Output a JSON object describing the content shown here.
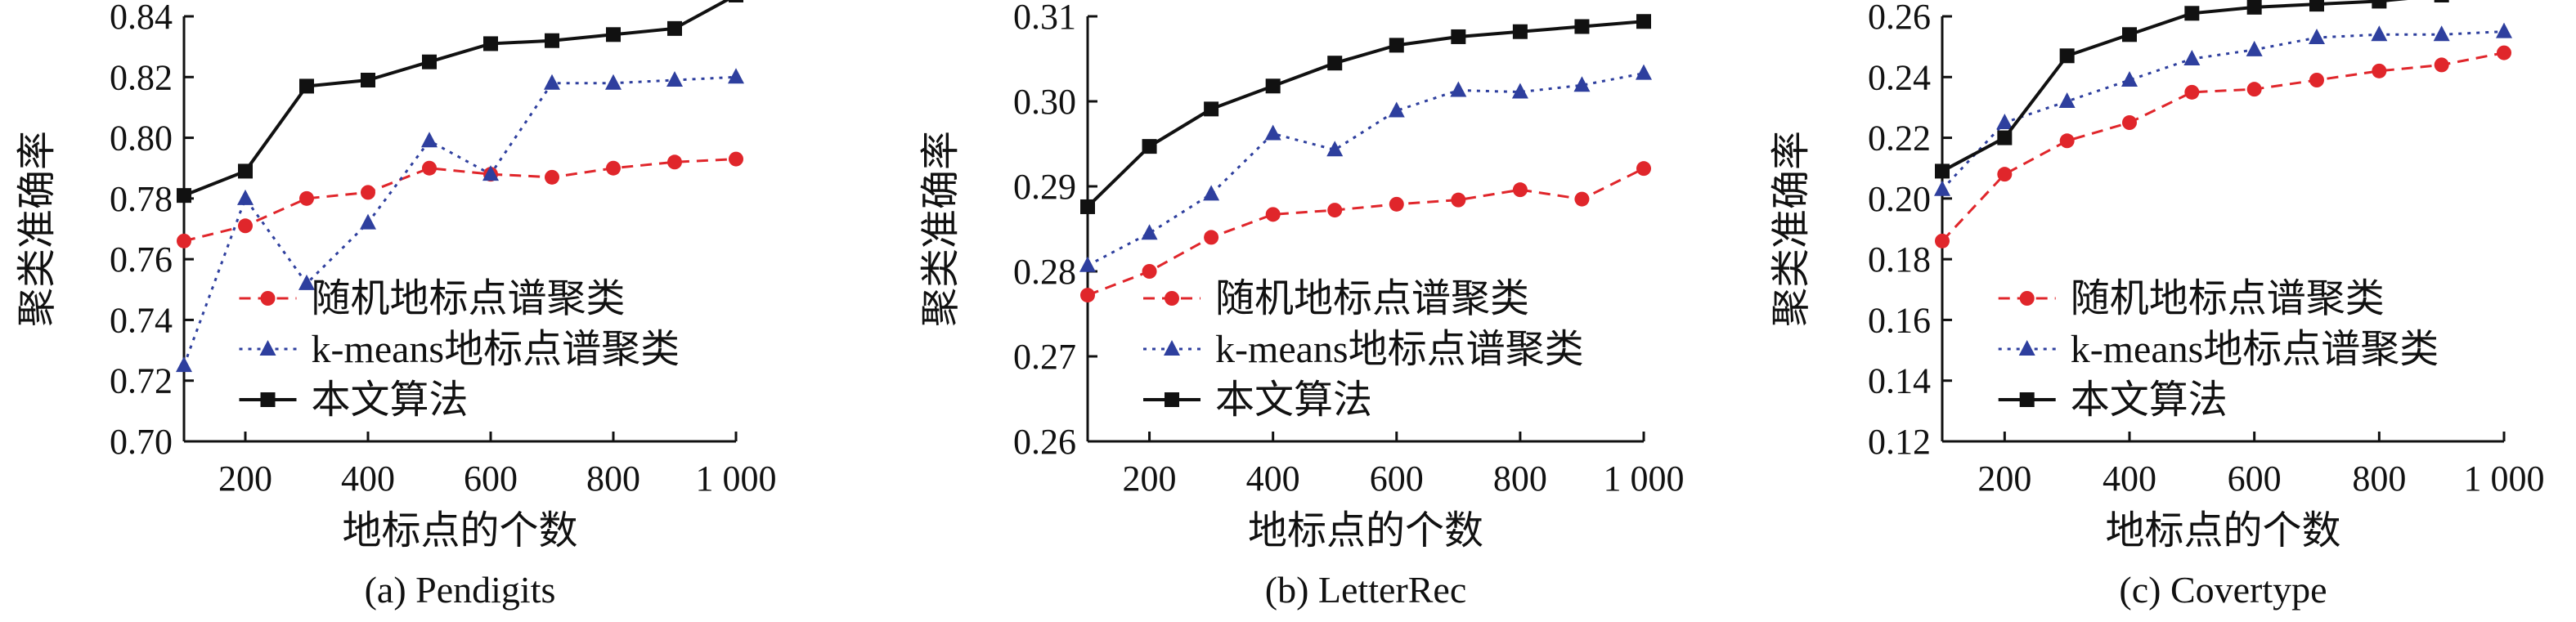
{
  "chart_data": [
    {
      "type": "line",
      "title": "",
      "caption": "(a) Pendigits",
      "xlabel": "地标点的个数",
      "ylabel": "聚类准确率",
      "x": [
        100,
        200,
        300,
        400,
        500,
        600,
        700,
        800,
        900,
        1000
      ],
      "xticks": [
        200,
        400,
        600,
        800,
        1000
      ],
      "xtick_labels": [
        "200",
        "400",
        "600",
        "800",
        "1 000"
      ],
      "xlim": [
        100,
        1000
      ],
      "ylim": [
        0.7,
        0.84
      ],
      "yticks": [
        0.7,
        0.72,
        0.74,
        0.76,
        0.78,
        0.8,
        0.82,
        0.84
      ],
      "ytick_labels": [
        "0.70",
        "0.72",
        "0.74",
        "0.76",
        "0.78",
        "0.80",
        "0.82",
        "0.84"
      ],
      "legend_position": "bottom-center",
      "grid": false,
      "series": [
        {
          "name": "随机地标点谱聚类",
          "marker": "circle",
          "color": "#e0262b",
          "style": "dashed",
          "values": [
            0.766,
            0.771,
            0.78,
            0.782,
            0.79,
            0.788,
            0.787,
            0.79,
            0.792,
            0.793
          ]
        },
        {
          "name": "k-means地标点谱聚类",
          "marker": "triangle",
          "color": "#2e3f9e",
          "style": "dotted",
          "values": [
            0.725,
            0.78,
            0.752,
            0.772,
            0.799,
            0.788,
            0.818,
            0.818,
            0.819,
            0.82
          ]
        },
        {
          "name": "本文算法",
          "marker": "square",
          "color": "#111111",
          "style": "solid",
          "values": [
            0.781,
            0.789,
            0.817,
            0.819,
            0.825,
            0.831,
            0.832,
            0.834,
            0.836,
            0.847
          ]
        }
      ]
    },
    {
      "type": "line",
      "title": "",
      "caption": "(b) LetterRec",
      "xlabel": "地标点的个数",
      "ylabel": "聚类准确率",
      "x": [
        100,
        200,
        300,
        400,
        500,
        600,
        700,
        800,
        900,
        1000
      ],
      "xticks": [
        200,
        400,
        600,
        800,
        1000
      ],
      "xtick_labels": [
        "200",
        "400",
        "600",
        "800",
        "1 000"
      ],
      "xlim": [
        100,
        1000
      ],
      "ylim": [
        0.26,
        0.31
      ],
      "yticks": [
        0.26,
        0.27,
        0.28,
        0.29,
        0.3,
        0.31
      ],
      "ytick_labels": [
        "0.26",
        "0.27",
        "0.28",
        "0.29",
        "0.30",
        "0.31"
      ],
      "legend_position": "bottom-center",
      "grid": false,
      "series": [
        {
          "name": "随机地标点谱聚类",
          "marker": "circle",
          "color": "#e0262b",
          "style": "dashed",
          "values": [
            0.2772,
            0.28,
            0.284,
            0.2867,
            0.2872,
            0.2879,
            0.2884,
            0.2896,
            0.2885,
            0.2921
          ]
        },
        {
          "name": "k-means地标点谱聚类",
          "marker": "triangle",
          "color": "#2e3f9e",
          "style": "dotted",
          "values": [
            0.2807,
            0.2845,
            0.2891,
            0.2962,
            0.2943,
            0.2989,
            0.3013,
            0.3011,
            0.3019,
            0.3033
          ]
        },
        {
          "name": "本文算法",
          "marker": "square",
          "color": "#111111",
          "style": "solid",
          "values": [
            0.2876,
            0.2947,
            0.2991,
            0.3018,
            0.3045,
            0.3066,
            0.3076,
            0.3082,
            0.3088,
            0.3094
          ]
        }
      ]
    },
    {
      "type": "line",
      "title": "",
      "caption": "(c) Covertype",
      "xlabel": "地标点的个数",
      "ylabel": "聚类准确率",
      "x": [
        100,
        200,
        300,
        400,
        500,
        600,
        700,
        800,
        900,
        1000
      ],
      "xticks": [
        200,
        400,
        600,
        800,
        1000
      ],
      "xtick_labels": [
        "200",
        "400",
        "600",
        "800",
        "1 000"
      ],
      "xlim": [
        100,
        1000
      ],
      "ylim": [
        0.12,
        0.26
      ],
      "yticks": [
        0.12,
        0.14,
        0.16,
        0.18,
        0.2,
        0.22,
        0.24,
        0.26
      ],
      "ytick_labels": [
        "0.12",
        "0.14",
        "0.16",
        "0.18",
        "0.20",
        "0.22",
        "0.24",
        "0.26"
      ],
      "legend_position": "bottom-center",
      "grid": false,
      "series": [
        {
          "name": "随机地标点谱聚类",
          "marker": "circle",
          "color": "#e0262b",
          "style": "dashed",
          "values": [
            0.186,
            0.208,
            0.219,
            0.225,
            0.235,
            0.236,
            0.239,
            0.242,
            0.244,
            0.248
          ]
        },
        {
          "name": "k-means地标点谱聚类",
          "marker": "triangle",
          "color": "#2e3f9e",
          "style": "dotted",
          "values": [
            0.203,
            0.225,
            0.232,
            0.239,
            0.246,
            0.249,
            0.253,
            0.254,
            0.254,
            0.255
          ]
        },
        {
          "name": "本文算法",
          "marker": "square",
          "color": "#111111",
          "style": "solid",
          "values": [
            0.209,
            0.22,
            0.247,
            0.254,
            0.261,
            0.263,
            0.264,
            0.265,
            0.267,
            0.268
          ]
        }
      ]
    }
  ]
}
